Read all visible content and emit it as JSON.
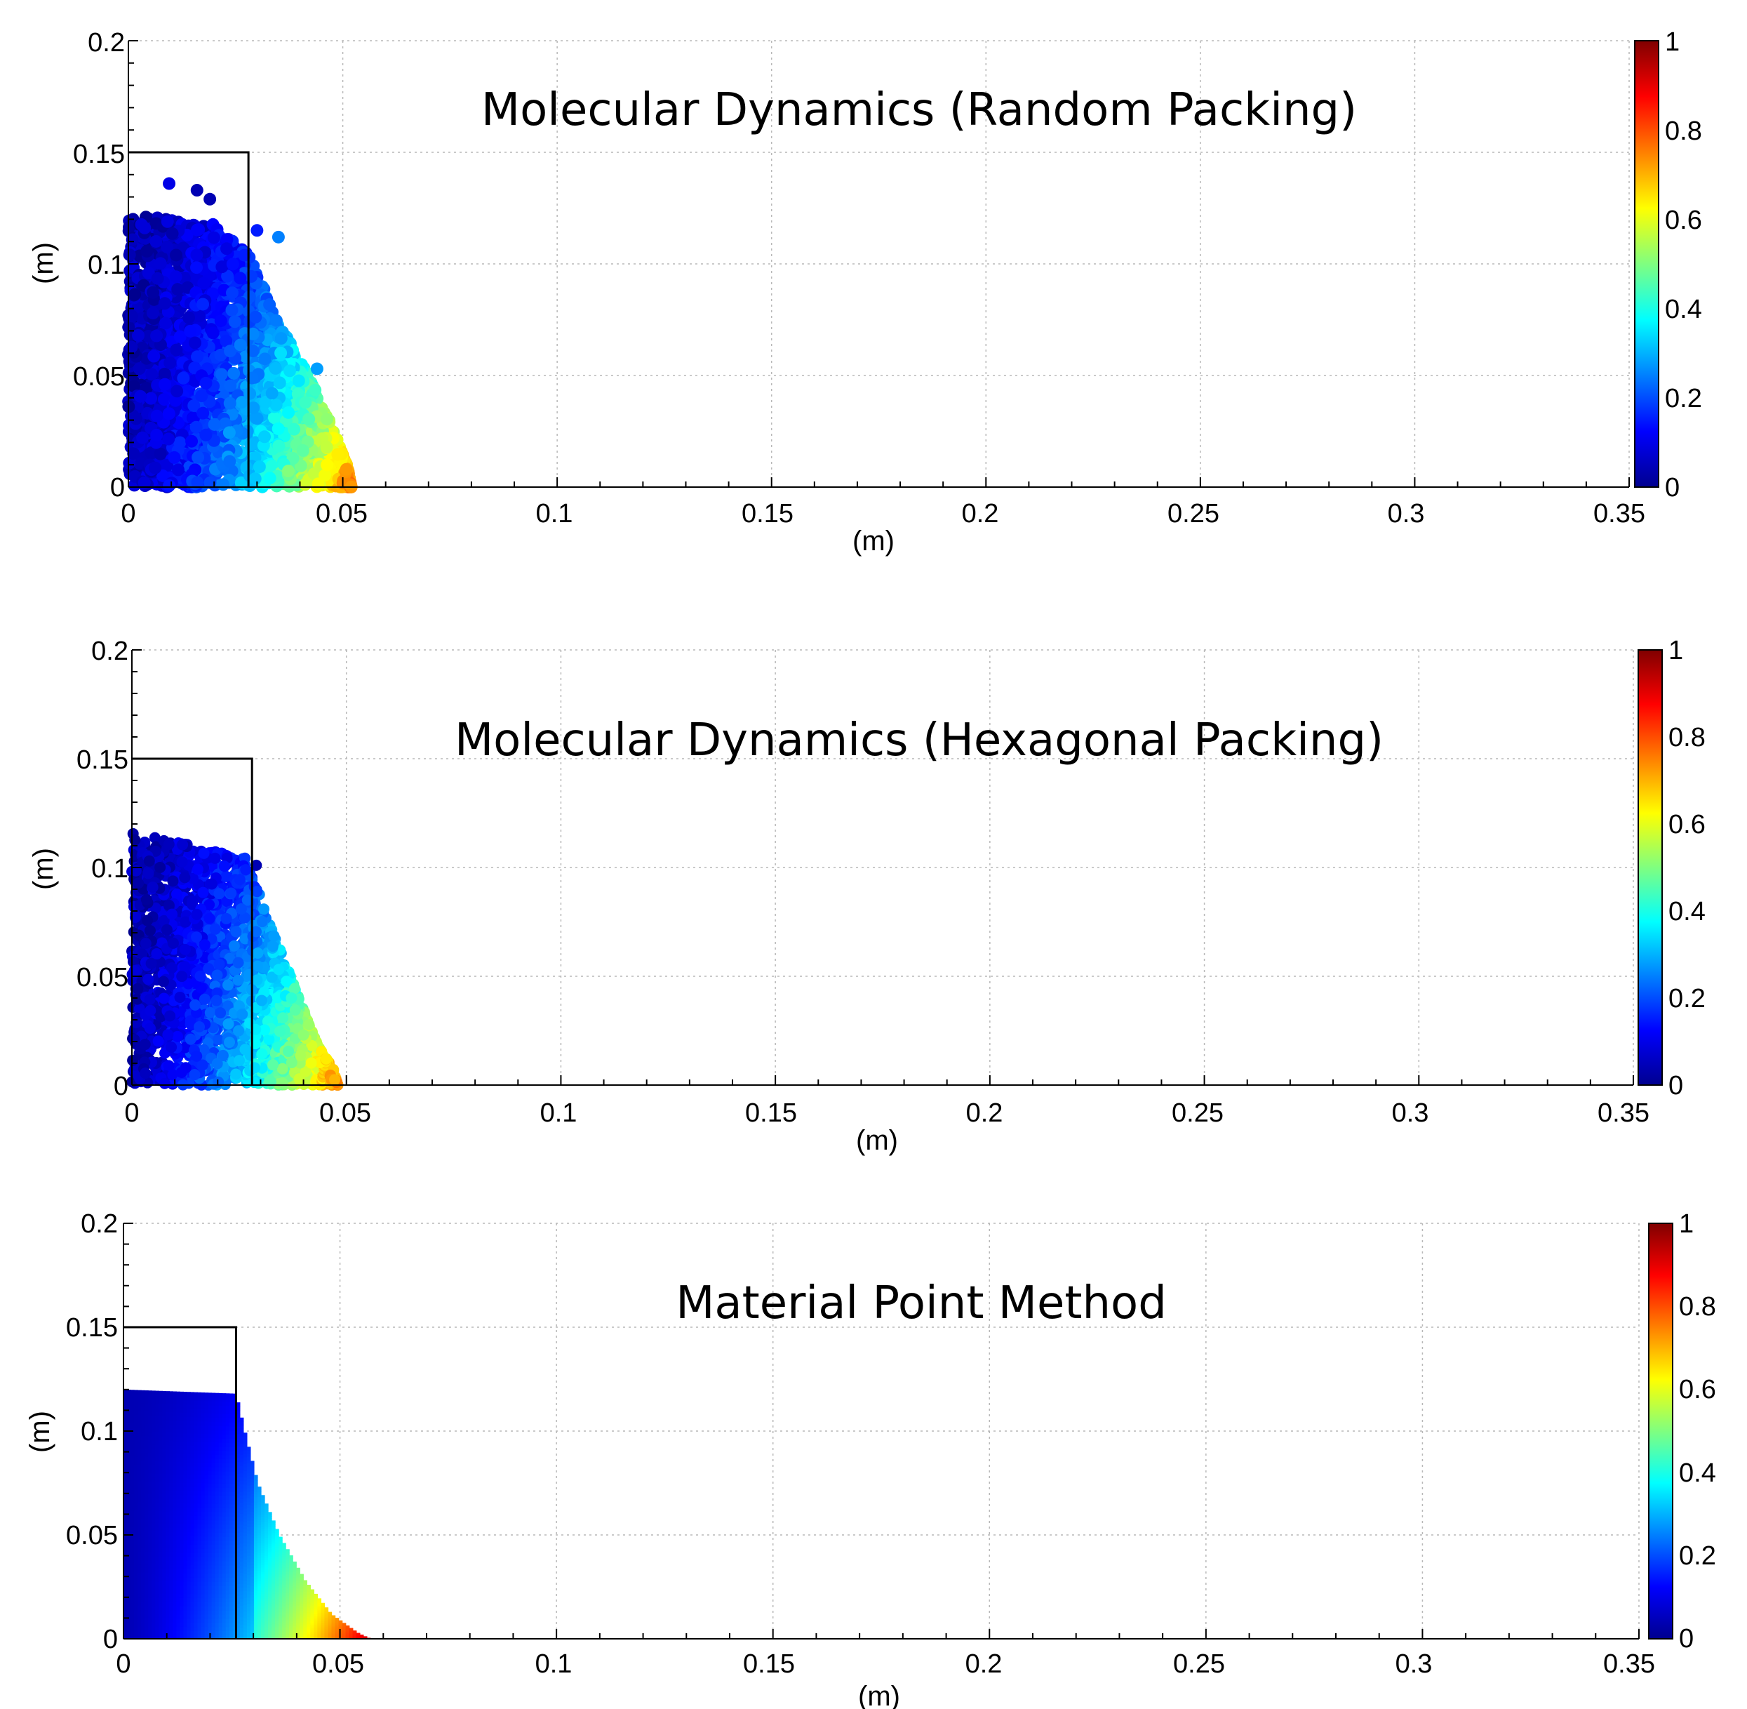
{
  "chart_data": [
    {
      "type": "scatter",
      "title": "Molecular Dynamics (Random Packing)",
      "xlabel": "(m)",
      "ylabel": "(m)",
      "xlim": [
        0,
        0.35
      ],
      "ylim": [
        0,
        0.2
      ],
      "xticks": [
        "0",
        "0.05",
        "0.1",
        "0.15",
        "0.2",
        "0.25",
        "0.3",
        "0.35"
      ],
      "yticks": [
        "0",
        "0.05",
        "0.1",
        "0.15",
        "0.2"
      ],
      "grid": true,
      "colormap": "jet",
      "colorbar": {
        "range": [
          0,
          1
        ],
        "ticks": [
          "0",
          "0.2",
          "0.4",
          "0.6",
          "0.8",
          "1"
        ]
      },
      "container_outline": {
        "x": [
          0,
          0.028,
          0.028
        ],
        "y": [
          0.15,
          0.15,
          0
        ]
      },
      "deposit_profile": {
        "x": [
          0,
          0.02,
          0.028,
          0.035,
          0.042,
          0.048,
          0.051,
          0.052
        ],
        "y": [
          0.122,
          0.118,
          0.104,
          0.075,
          0.05,
          0.025,
          0.01,
          0
        ]
      },
      "outlier_points": [
        {
          "x": 0.0095,
          "y": 0.136,
          "v": 0.1
        },
        {
          "x": 0.016,
          "y": 0.133,
          "v": 0.05
        },
        {
          "x": 0.019,
          "y": 0.129,
          "v": 0.05
        },
        {
          "x": 0.03,
          "y": 0.115,
          "v": 0.15
        },
        {
          "x": 0.035,
          "y": 0.112,
          "v": 0.25
        },
        {
          "x": 0.044,
          "y": 0.053,
          "v": 0.28
        }
      ]
    },
    {
      "type": "scatter",
      "title": "Molecular Dynamics (Hexagonal Packing)",
      "xlabel": "(m)",
      "ylabel": "(m)",
      "xlim": [
        0,
        0.35
      ],
      "ylim": [
        0,
        0.2
      ],
      "xticks": [
        "0",
        "0.05",
        "0.1",
        "0.15",
        "0.2",
        "0.25",
        "0.3",
        "0.35"
      ],
      "yticks": [
        "0",
        "0.05",
        "0.1",
        "0.15",
        "0.2"
      ],
      "grid": true,
      "colormap": "jet",
      "colorbar": {
        "range": [
          0,
          1
        ],
        "ticks": [
          "0",
          "0.2",
          "0.4",
          "0.6",
          "0.8",
          "1"
        ]
      },
      "container_outline": {
        "x": [
          0,
          0.028,
          0.028
        ],
        "y": [
          0.15,
          0.15,
          0
        ]
      },
      "deposit_profile": {
        "x": [
          0,
          0.015,
          0.027,
          0.032,
          0.038,
          0.043,
          0.047,
          0.048
        ],
        "y": [
          0.116,
          0.11,
          0.104,
          0.075,
          0.045,
          0.02,
          0.007,
          0
        ]
      },
      "outlier_points": [
        {
          "x": 0.029,
          "y": 0.101,
          "v": 0.05
        }
      ]
    },
    {
      "type": "heatmap",
      "title": "Material Point Method",
      "xlabel": "(m)",
      "ylabel": "(m)",
      "xlim": [
        0,
        0.35
      ],
      "ylim": [
        0,
        0.2
      ],
      "xticks": [
        "0",
        "0.05",
        "0.1",
        "0.15",
        "0.2",
        "0.25",
        "0.3",
        "0.35"
      ],
      "yticks": [
        "0",
        "0.05",
        "0.1",
        "0.15",
        "0.2"
      ],
      "grid": true,
      "colormap": "jet",
      "colorbar": {
        "range": [
          0,
          1
        ],
        "ticks": [
          "0",
          "0.2",
          "0.4",
          "0.6",
          "0.8",
          "1"
        ]
      },
      "container_outline": {
        "x": [
          0,
          0.026,
          0.026
        ],
        "y": [
          0.15,
          0.15,
          0
        ]
      },
      "deposit_profile": {
        "x": [
          0,
          0.026,
          0.028,
          0.031,
          0.036,
          0.042,
          0.048,
          0.054,
          0.057
        ],
        "y": [
          0.12,
          0.118,
          0.1,
          0.075,
          0.05,
          0.028,
          0.012,
          0.003,
          0
        ]
      }
    }
  ]
}
